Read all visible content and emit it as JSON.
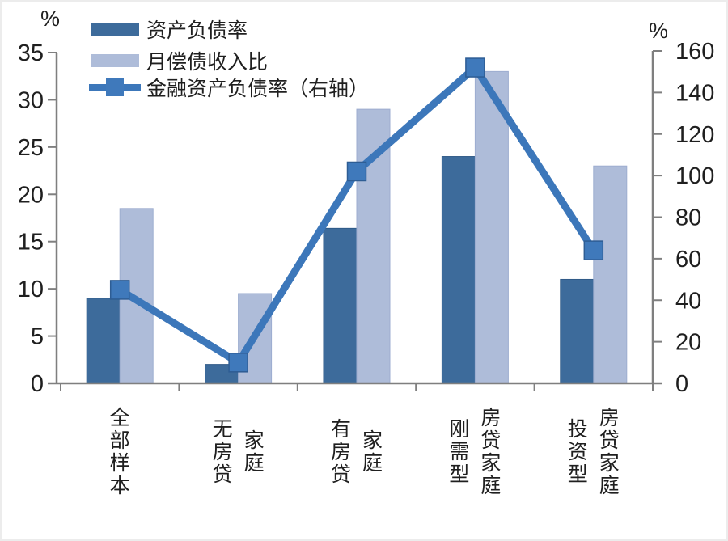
{
  "chart_data": {
    "type": "combo-bar-line-dual-axis",
    "title": "",
    "categories": [
      "全部样本",
      "无房贷家庭",
      "有房贷家庭",
      "刚需型房贷家庭",
      "投资型房贷家庭"
    ],
    "category_label_columns": [
      [
        "全部样本"
      ],
      [
        "无房贷",
        "家庭"
      ],
      [
        "有房贷",
        "家庭"
      ],
      [
        "刚需型",
        "房贷家庭"
      ],
      [
        "投资型",
        "房贷家庭"
      ]
    ],
    "bar_series": [
      {
        "name": "资产负债率",
        "axis": "left",
        "color": "#3d6b9b",
        "edge_color": "#2f5a87",
        "values": [
          9,
          2,
          16.4,
          24,
          11
        ]
      },
      {
        "name": "月偿债收入比",
        "axis": "left",
        "color": "#aebcd9",
        "edge_color": "#9dadd0",
        "values": [
          18.5,
          9.5,
          29,
          33,
          23
        ]
      }
    ],
    "line_series": {
      "name": "金融资产负债率（右轴）",
      "axis": "right",
      "color": "#3c77ba",
      "marker": "square",
      "marker_fill": "#3f79bb",
      "marker_edge": "#2e5d94",
      "values": [
        45,
        10,
        102,
        152,
        64
      ]
    },
    "left_axis": {
      "label": "%",
      "min": 0,
      "max": 35,
      "step": 5
    },
    "right_axis": {
      "label": "%",
      "min": 0,
      "max": 160,
      "step": 20
    },
    "legend": {
      "position": "top-left",
      "entries": [
        "资产负债率",
        "月偿债收入比",
        "金融资产负债率（右轴）"
      ]
    },
    "grid": false,
    "axis_color": "#7f7f7f",
    "text_color": "#1f1f1f",
    "background": "#ffffff"
  }
}
